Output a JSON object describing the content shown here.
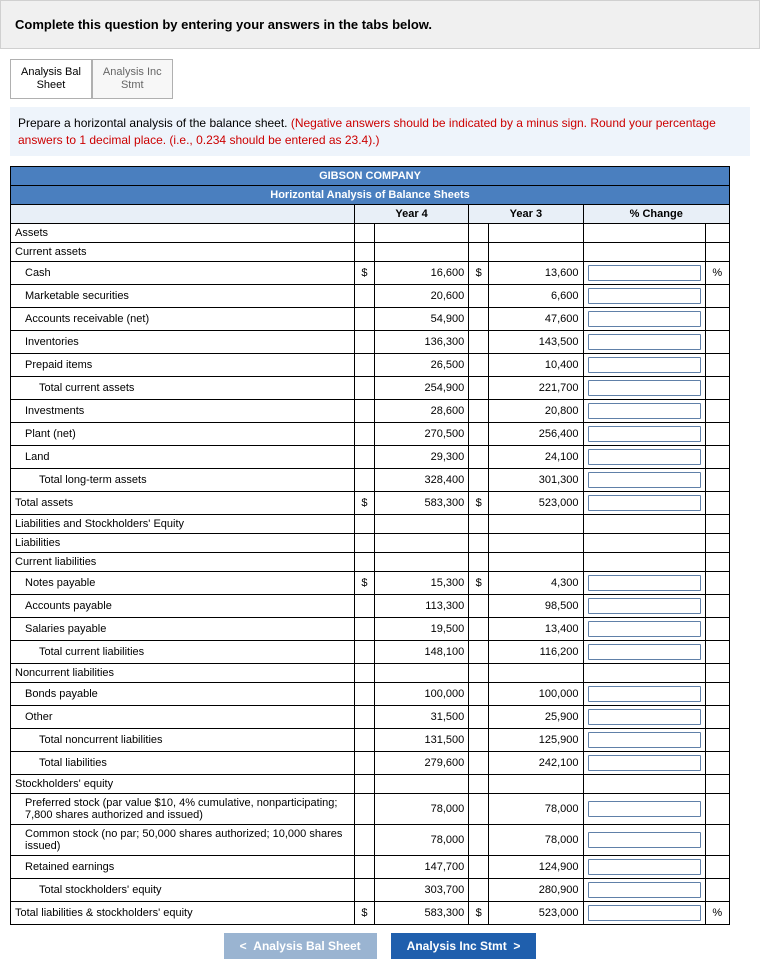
{
  "banner": {
    "text": "Complete this question by entering your answers in the tabs below."
  },
  "tabs": {
    "bal": "Analysis Bal\nSheet",
    "inc": "Analysis Inc\nStmt"
  },
  "prompt": {
    "black": "Prepare a horizontal analysis of the balance sheet. ",
    "red": "(Negative answers should be indicated by a minus sign. Round your percentage answers to 1 decimal place. (i.e., 0.234 should be entered as 23.4).)"
  },
  "hdr": {
    "company": "GIBSON COMPANY",
    "title": "Horizontal Analysis of Balance Sheets",
    "y4": "Year 4",
    "y3": "Year 3",
    "chg": "% Change"
  },
  "rows": {
    "assets": "Assets",
    "cur_assets": "Current assets",
    "cash": {
      "label": "Cash",
      "cur4": "$",
      "y4": "16,600",
      "cur3": "$",
      "y3": "13,600",
      "pct": "%"
    },
    "mkt": {
      "label": "Marketable securities",
      "y4": "20,600",
      "y3": "6,600"
    },
    "ar": {
      "label": "Accounts receivable (net)",
      "y4": "54,900",
      "y3": "47,600"
    },
    "inv": {
      "label": "Inventories",
      "y4": "136,300",
      "y3": "143,500"
    },
    "prepaid": {
      "label": "Prepaid items",
      "y4": "26,500",
      "y3": "10,400"
    },
    "tca": {
      "label": "Total current assets",
      "y4": "254,900",
      "y3": "221,700"
    },
    "investments": {
      "label": "Investments",
      "y4": "28,600",
      "y3": "20,800"
    },
    "plant": {
      "label": "Plant (net)",
      "y4": "270,500",
      "y3": "256,400"
    },
    "land": {
      "label": "Land",
      "y4": "29,300",
      "y3": "24,100"
    },
    "tlta": {
      "label": "Total long-term assets",
      "y4": "328,400",
      "y3": "301,300"
    },
    "ta": {
      "label": "Total assets",
      "cur4": "$",
      "y4": "583,300",
      "cur3": "$",
      "y3": "523,000"
    },
    "liab_se": "Liabilities and Stockholders' Equity",
    "liab": "Liabilities",
    "cur_liab": "Current liabilities",
    "np": {
      "label": "Notes payable",
      "cur4": "$",
      "y4": "15,300",
      "cur3": "$",
      "y3": "4,300"
    },
    "ap": {
      "label": "Accounts payable",
      "y4": "113,300",
      "y3": "98,500"
    },
    "sp": {
      "label": "Salaries payable",
      "y4": "19,500",
      "y3": "13,400"
    },
    "tcl": {
      "label": "Total current liabilities",
      "y4": "148,100",
      "y3": "116,200"
    },
    "ncl": "Noncurrent liabilities",
    "bp": {
      "label": "Bonds payable",
      "y4": "100,000",
      "y3": "100,000"
    },
    "other": {
      "label": "Other",
      "y4": "31,500",
      "y3": "25,900"
    },
    "tncl": {
      "label": "Total noncurrent liabilities",
      "y4": "131,500",
      "y3": "125,900"
    },
    "tl": {
      "label": "Total liabilities",
      "y4": "279,600",
      "y3": "242,100"
    },
    "se": "Stockholders' equity",
    "pref": {
      "label": "Preferred stock (par value $10, 4% cumulative, nonparticipating; 7,800 shares authorized and issued)",
      "y4": "78,000",
      "y3": "78,000"
    },
    "common": {
      "label": "Common stock (no par; 50,000 shares authorized; 10,000 shares issued)",
      "y4": "78,000",
      "y3": "78,000"
    },
    "re": {
      "label": "Retained earnings",
      "y4": "147,700",
      "y3": "124,900"
    },
    "tse": {
      "label": "Total stockholders' equity",
      "y4": "303,700",
      "y3": "280,900"
    },
    "tlse": {
      "label": "Total liabilities & stockholders' equity",
      "cur4": "$",
      "y4": "583,300",
      "cur3": "$",
      "y3": "523,000",
      "pct": "%"
    }
  },
  "nav": {
    "prev": "Analysis Bal Sheet",
    "next": "Analysis Inc Stmt"
  },
  "colors": {
    "banner_bg": "#f0f0f0",
    "prompt_bg": "#eef4fb",
    "header_blue": "#4a7fbf",
    "col_hdr_bg": "#e8eff7",
    "input_border": "#6080a8",
    "red": "#cc0000",
    "btn_prev": "#9ab4d1",
    "btn_next": "#1f5fad"
  }
}
